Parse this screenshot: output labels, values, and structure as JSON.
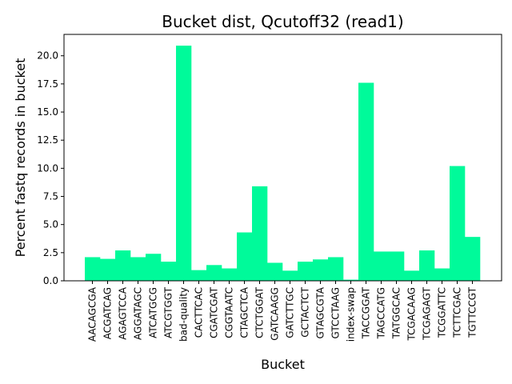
{
  "chart_data": {
    "type": "bar",
    "title": "Bucket dist, Qcutoff32 (read1)",
    "xlabel": "Bucket",
    "ylabel": "Percent fastq records in bucket",
    "ylim": [
      0,
      21.9
    ],
    "yticks": [
      "0.0",
      "2.5",
      "5.0",
      "7.5",
      "10.0",
      "12.5",
      "15.0",
      "17.5",
      "20.0"
    ],
    "grid": false,
    "bar_color": "#00fa9a",
    "categories": [
      "AACAGCGA",
      "ACGATCAG",
      "AGAGTCCA",
      "AGGATAGC",
      "ATCATGCG",
      "ATCGTGGT",
      "bad-quality",
      "CACTTCAC",
      "CGATCGAT",
      "CGGTAATC",
      "CTAGCTCA",
      "CTCTGGAT",
      "GATCAAGG",
      "GATCTTGC",
      "GCTACTCT",
      "GTAGCGTA",
      "GTCCTAAG",
      "index-swap",
      "TACCGGAT",
      "TAGCCATG",
      "TATGGCAC",
      "TCGACAAG",
      "TCGAGAGT",
      "TCGGATTC",
      "TCTTCGAC",
      "TGTTCCGT"
    ],
    "values": [
      2.1,
      1.95,
      2.7,
      2.1,
      2.4,
      1.7,
      20.9,
      0.95,
      1.4,
      1.1,
      4.3,
      8.4,
      1.6,
      0.9,
      1.7,
      1.9,
      2.1,
      0.1,
      17.6,
      2.6,
      2.6,
      0.9,
      2.7,
      1.1,
      10.2,
      3.9
    ]
  }
}
